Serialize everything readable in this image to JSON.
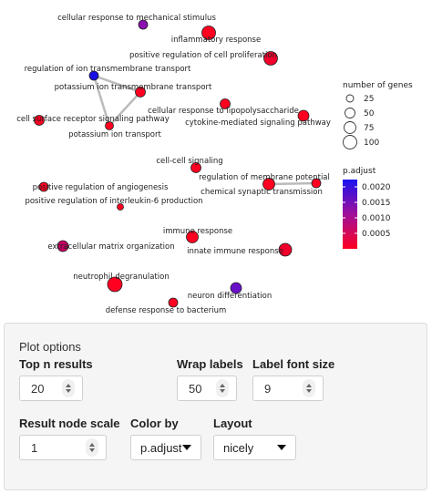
{
  "network": {
    "nodes": [
      {
        "label": "cellular response to mechanical stimulus",
        "color": "#8c0fb0"
      },
      {
        "label": "inflammatory response",
        "color": "#ff0020"
      },
      {
        "label": "positive regulation of cell proliferation",
        "color": "#f0002a"
      },
      {
        "label": "regulation of ion transmembrane transport",
        "color": "#1a10e6"
      },
      {
        "label": "potassium ion transmembrane transport",
        "color": "#ff0020"
      },
      {
        "label": "cell surface receptor signaling pathway",
        "color": "#ff0020"
      },
      {
        "label": "potassium ion transport",
        "color": "#ff0020"
      },
      {
        "label": "cellular response to lipopolysaccharide",
        "color": "#ff0020"
      },
      {
        "label": "cytokine-mediated signaling pathway",
        "color": "#ff0020"
      },
      {
        "label": "cell-cell signaling",
        "color": "#ff0020"
      },
      {
        "label": "regulation of membrane potential",
        "color": "#ff0020"
      },
      {
        "label": "chemical synaptic transmission",
        "color": "#ff0020"
      },
      {
        "label": "positive regulation of angiogenesis",
        "color": "#ff0020"
      },
      {
        "label": "positive regulation of interleukin-6 production",
        "color": "#ff0020"
      },
      {
        "label": "immune response",
        "color": "#ff0020"
      },
      {
        "label": "extracellular matrix organization",
        "color": "#c00060"
      },
      {
        "label": "innate immune response",
        "color": "#f0002a"
      },
      {
        "label": "neutrophil degranulation",
        "color": "#ff0020"
      },
      {
        "label": "neuron differentiation",
        "color": "#6a10c8"
      },
      {
        "label": "defense response to bacterium",
        "color": "#ff0020"
      }
    ],
    "legend_size": {
      "title": "number of genes",
      "items": [
        "25",
        "50",
        "75",
        "100"
      ]
    },
    "legend_color": {
      "title": "p.adjust",
      "ticks": [
        "0.0020",
        "0.0015",
        "0.0010",
        "0.0005"
      ],
      "high_color": "#1a10f0",
      "low_color": "#ff0020"
    }
  },
  "options": {
    "panel_title": "Plot options",
    "top_n_label": "Top n results",
    "top_n_value": "20",
    "wrap_labels_label": "Wrap labels",
    "wrap_labels_value": "50",
    "label_font_size_label": "Label font size",
    "label_font_size_value": "9",
    "result_node_scale_label": "Result node scale",
    "result_node_scale_value": "1",
    "color_by_label": "Color by",
    "color_by_value": "p.adjust",
    "layout_label": "Layout",
    "layout_value": "nicely"
  }
}
